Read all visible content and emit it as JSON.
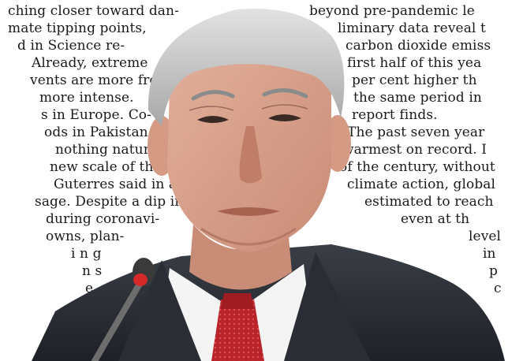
{
  "article": {
    "left_column": [
      "ching closer toward dan-",
      "mate tipping points,",
      "d in Science re-",
      "Already, extreme",
      "vents are more fre-",
      "more intense.",
      "s in Europe. Co-",
      "ods in Pakistan...",
      "nothing   natural",
      "new scale of these",
      "Guterres said in a",
      "sage. Despite a dip in",
      "during coronavi-",
      "owns,   plan-",
      "i n g",
      "n s",
      "e"
    ],
    "right_column": [
      "beyond  pre-pandemic  le",
      "liminary data reveal t",
      "carbon dioxide emiss",
      "first half of this yea",
      "per  cent  higher  th",
      "the  same  period  in",
      "report finds.",
      "The past seven year",
      "warmest on record. I",
      "of the century, without",
      "climate action, global",
      "estimated to reach",
      "even   at  th",
      "level",
      "in",
      "p",
      "c"
    ]
  },
  "photo": {
    "subject": "portrait of a grey-haired man in suit and red patterned tie speaking at a microphone",
    "colors": {
      "suit": "#2b2f37",
      "shirt": "#f4f4f4",
      "tie": "#b8242a",
      "skin": "#d9a28c",
      "hair": "#c9c9c9"
    }
  }
}
